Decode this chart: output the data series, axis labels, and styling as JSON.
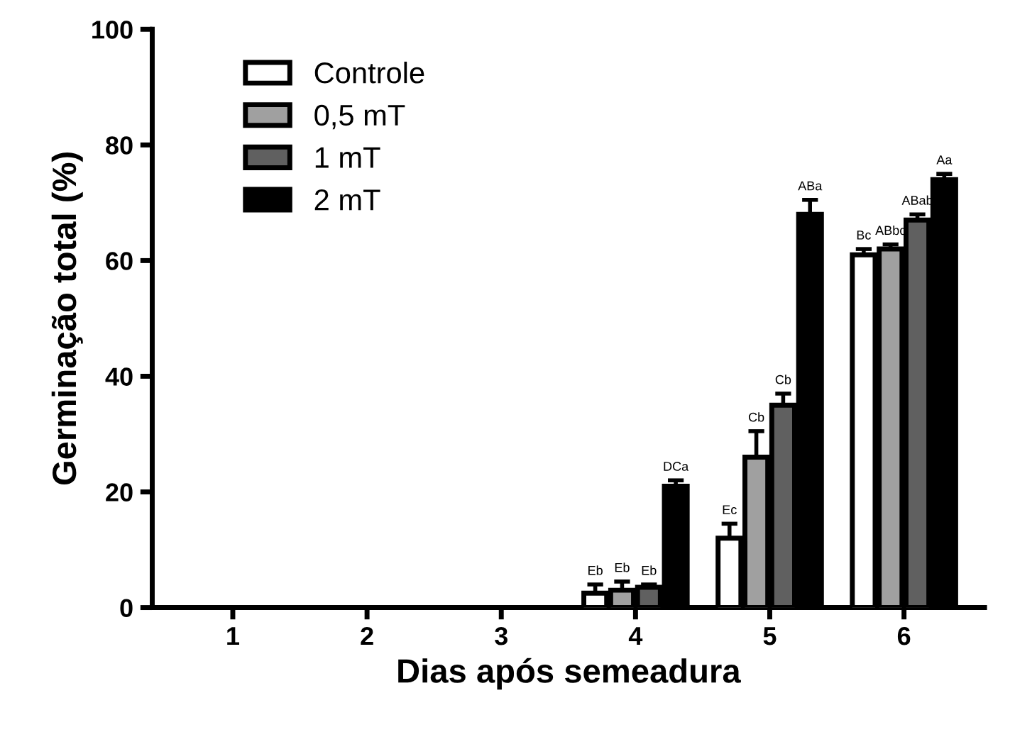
{
  "chart_data": {
    "type": "bar",
    "xlabel": "Dias após semeadura",
    "ylabel": "Germinação total (%)",
    "categories": [
      "1",
      "2",
      "3",
      "4",
      "5",
      "6"
    ],
    "series": [
      {
        "name": "Controle",
        "color": "#ffffff",
        "values": [
          null,
          null,
          null,
          2.5,
          12,
          61
        ],
        "errors": [
          null,
          null,
          null,
          1.5,
          2.5,
          1
        ],
        "value_labels": [
          null,
          null,
          null,
          "Eb",
          "Ec",
          "Bc"
        ]
      },
      {
        "name": "0,5 mT",
        "color": "#a0a0a0",
        "values": [
          null,
          null,
          null,
          3,
          26,
          62
        ],
        "errors": [
          null,
          null,
          null,
          1.5,
          4.5,
          0.8
        ],
        "value_labels": [
          null,
          null,
          null,
          "Eb",
          "Cb",
          "ABbc"
        ]
      },
      {
        "name": "1 mT",
        "color": "#606060",
        "values": [
          null,
          null,
          null,
          3.5,
          35,
          67
        ],
        "errors": [
          null,
          null,
          null,
          0.5,
          2,
          1
        ],
        "value_labels": [
          null,
          null,
          null,
          "Eb",
          "Cb",
          "ABab"
        ]
      },
      {
        "name": "2 mT",
        "color": "#000000",
        "values": [
          null,
          null,
          null,
          21,
          68,
          74
        ],
        "errors": [
          null,
          null,
          null,
          1,
          2.5,
          1
        ],
        "value_labels": [
          null,
          null,
          null,
          "DCa",
          "ABa",
          "Aa"
        ]
      }
    ],
    "ylim": [
      0,
      100
    ],
    "yticks": [
      0,
      20,
      40,
      60,
      80,
      100
    ],
    "grid": false,
    "legend": "top left"
  }
}
